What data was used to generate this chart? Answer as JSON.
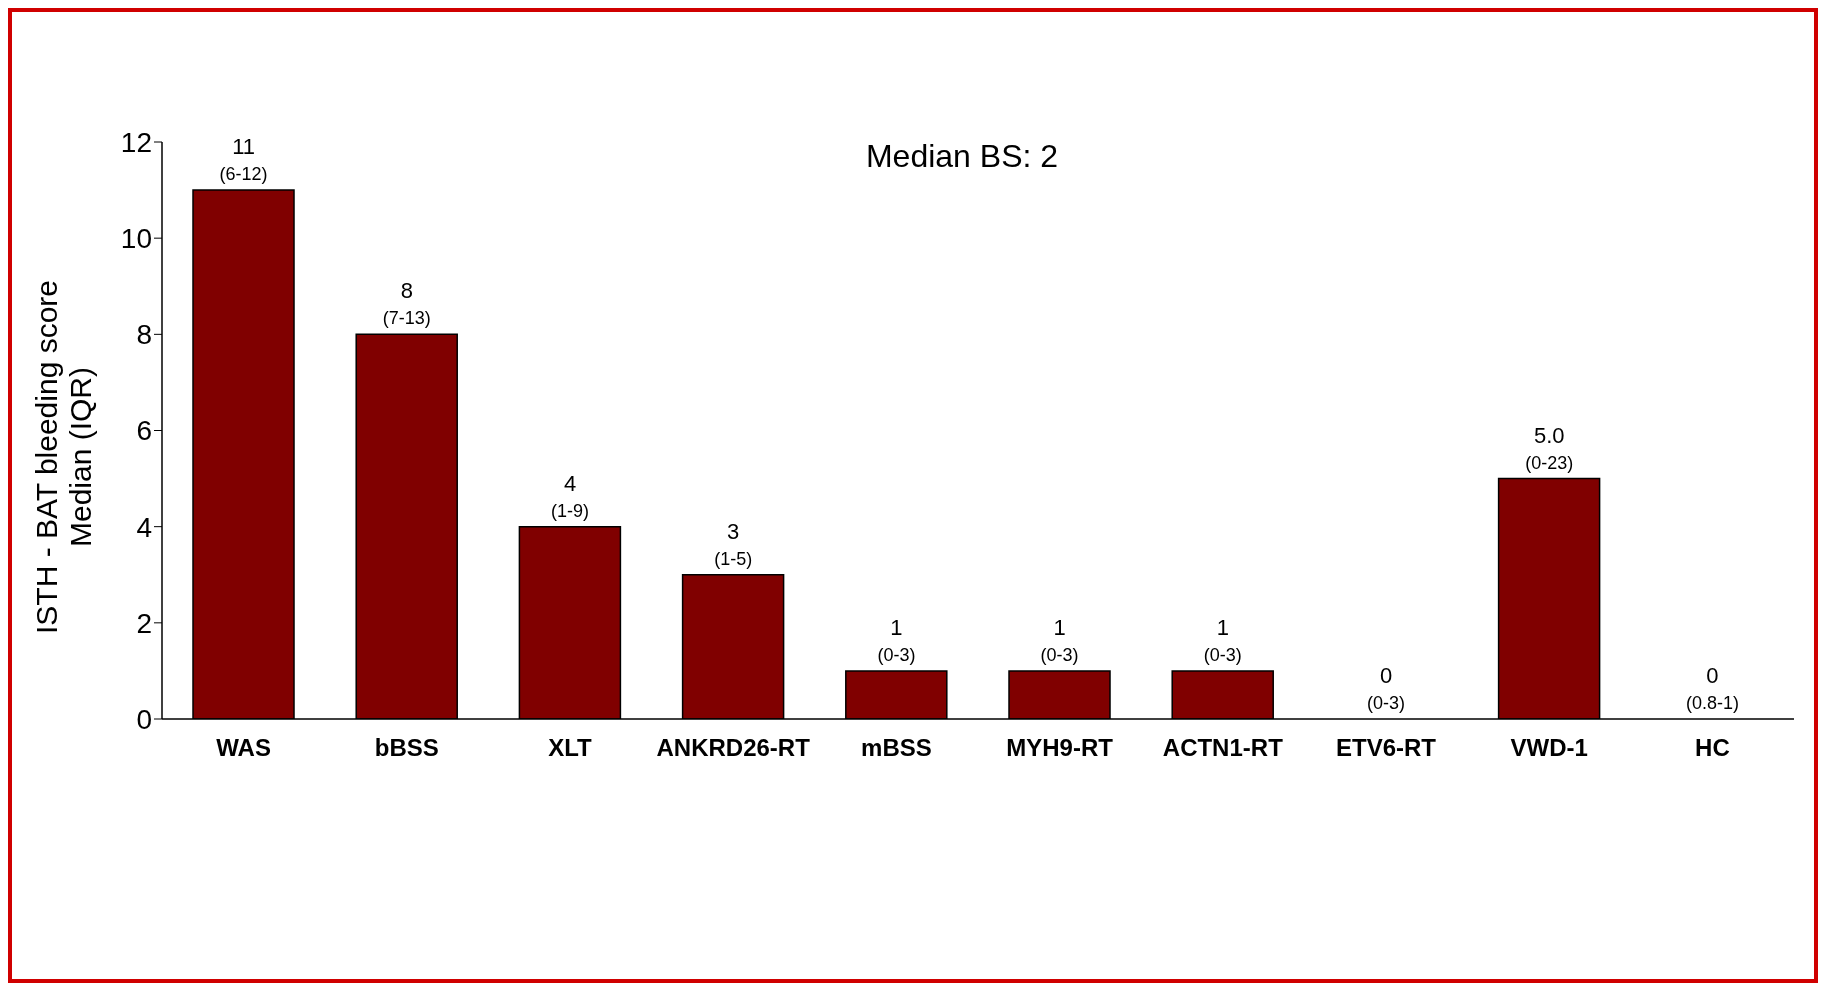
{
  "chart_data": {
    "type": "bar",
    "ylabel": "ISTH - BAT bleeding score\nMedian (IQR)",
    "annotations": [
      "Median BS: 2"
    ],
    "categories": [
      "WAS",
      "bBSS",
      "XLT",
      "ANKRD26-RT",
      "mBSS",
      "MYH9-RT",
      "ACTN1-RT",
      "ETV6-RT",
      "VWD-1",
      "HC"
    ],
    "values": [
      11,
      8,
      4,
      3,
      1,
      1,
      1,
      0,
      5,
      0
    ],
    "value_labels": [
      "11\n(6-12)",
      "8\n(7-13)",
      "4\n(1-9)",
      "3\n(1-5)",
      "1\n(0-3)",
      "1\n(0-3)",
      "1\n(0-3)",
      "0\n(0-3)",
      "5.0\n(0-23)",
      "0\n(0.8-1)"
    ],
    "color": "#800000",
    "ylim": [
      0,
      12
    ],
    "yticks": [
      0,
      2,
      4,
      6,
      8,
      10,
      12
    ],
    "grid": false,
    "legend": false
  }
}
